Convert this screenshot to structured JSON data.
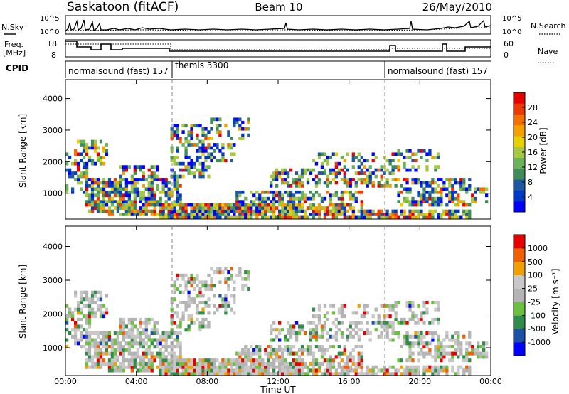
{
  "header": {
    "station": "Saskatoon (fitACF)",
    "beam": "Beam 10",
    "date": "26/May/2010"
  },
  "sky_panel": {
    "left_label": "N.Sky",
    "right_label": "N.Search",
    "left_ticks": [
      "10^5",
      "10^0"
    ],
    "right_ticks": [
      "10^5",
      "10^0"
    ]
  },
  "freq_panel": {
    "left_label_1": "Freq.",
    "left_label_2": "[MHz]",
    "right_label": "Nave",
    "left_ticks": [
      "18",
      "8"
    ],
    "right_ticks": [
      "60",
      "0"
    ]
  },
  "cpid": {
    "label": "CPID",
    "segments": [
      {
        "name": "normalsound (fast) 157",
        "start_h": 0,
        "end_h": 6
      },
      {
        "name": "themis 3300",
        "start_h": 6,
        "end_h": 18
      },
      {
        "name": "normalsound (fast) 157",
        "start_h": 18,
        "end_h": 24
      }
    ]
  },
  "chart_data": [
    {
      "type": "heatmap",
      "title": "Power",
      "ylabel": "Slant Range [km]",
      "yticks": [
        "1000",
        "2000",
        "3000",
        "4000"
      ],
      "ylim": [
        180,
        4600
      ],
      "colorbar_label": "Power [dB]",
      "colorbar_ticks": [
        "4",
        "8",
        "12",
        "16",
        "20",
        "24",
        "28"
      ],
      "colorbar_colors": [
        "#0000ff",
        "#0038c8",
        "#1f58a0",
        "#3f8c58",
        "#6cb25a",
        "#a6c842",
        "#e6d000",
        "#f6a000",
        "#f27000",
        "#ec3a00",
        "#e60000"
      ]
    },
    {
      "type": "heatmap",
      "title": "Velocity",
      "ylabel": "Slant Range [km]",
      "yticks": [
        "1000",
        "2000",
        "3000",
        "4000"
      ],
      "ylim": [
        180,
        4600
      ],
      "colorbar_label": "Velocity [m s⁻¹]",
      "colorbar_ticks": [
        "1000",
        "500",
        "100",
        "25",
        "-25",
        "-100",
        "-500",
        "-1000"
      ],
      "colorbar_colors": [
        "#0000ff",
        "#1e50a8",
        "#2f8c4a",
        "#6cc040",
        "#b4b4b4",
        "#c8c8c8",
        "#f0a000",
        "#f06000",
        "#e60000"
      ]
    }
  ],
  "time_axis": {
    "label": "Time UT",
    "ticks": [
      "00:00",
      "04:00",
      "08:00",
      "12:00",
      "16:00",
      "20:00",
      "00:00"
    ]
  }
}
